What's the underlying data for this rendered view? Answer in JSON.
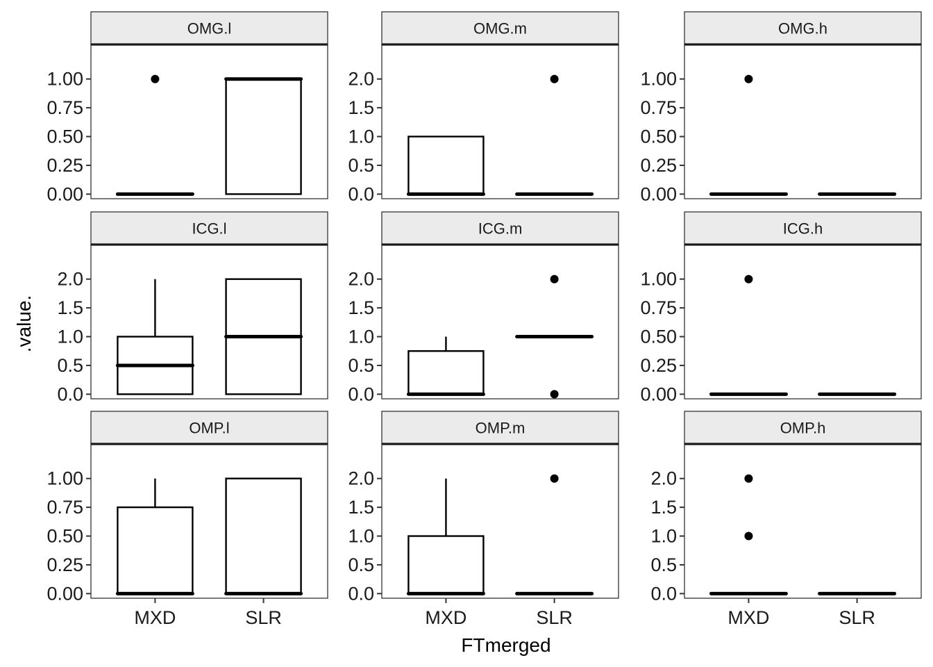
{
  "chart_data": {
    "type": "boxplot",
    "layout": "facet-grid 3x3",
    "xlabel": "FTmerged",
    "ylabel": ".value.",
    "categories": [
      "MXD",
      "SLR"
    ],
    "x_tick_labels": [
      "MXD",
      "SLR"
    ],
    "colors": {
      "box": "#000000",
      "strip_fill": "#ebebeb",
      "background": "#ffffff"
    },
    "panels": [
      {
        "label": "OMG.l",
        "ylim": [
          -0.04,
          1.3
        ],
        "y_tick_labels": [
          "0.00",
          "0.25",
          "0.50",
          "0.75",
          "1.00"
        ],
        "y_tick_values": [
          0,
          0.25,
          0.5,
          0.75,
          1.0
        ],
        "boxes": [
          {
            "category": "MXD",
            "lower_whisker": 0,
            "q1": 0,
            "median": 0,
            "q3": 0,
            "upper_whisker": 0,
            "outliers": [
              1
            ]
          },
          {
            "category": "SLR",
            "lower_whisker": 0,
            "q1": 0,
            "median": 1,
            "q3": 1,
            "upper_whisker": 1,
            "outliers": []
          }
        ]
      },
      {
        "label": "OMG.m",
        "ylim": [
          -0.08,
          2.6
        ],
        "y_tick_labels": [
          "0.0",
          "0.5",
          "1.0",
          "1.5",
          "2.0"
        ],
        "y_tick_values": [
          0,
          0.5,
          1.0,
          1.5,
          2.0
        ],
        "boxes": [
          {
            "category": "MXD",
            "lower_whisker": 0,
            "q1": 0,
            "median": 0,
            "q3": 1,
            "upper_whisker": 1,
            "outliers": []
          },
          {
            "category": "SLR",
            "lower_whisker": 0,
            "q1": 0,
            "median": 0,
            "q3": 0,
            "upper_whisker": 0,
            "outliers": [
              2
            ]
          }
        ]
      },
      {
        "label": "OMG.h",
        "ylim": [
          -0.04,
          1.3
        ],
        "y_tick_labels": [
          "0.00",
          "0.25",
          "0.50",
          "0.75",
          "1.00"
        ],
        "y_tick_values": [
          0,
          0.25,
          0.5,
          0.75,
          1.0
        ],
        "boxes": [
          {
            "category": "MXD",
            "lower_whisker": 0,
            "q1": 0,
            "median": 0,
            "q3": 0,
            "upper_whisker": 0,
            "outliers": [
              1
            ]
          },
          {
            "category": "SLR",
            "lower_whisker": 0,
            "q1": 0,
            "median": 0,
            "q3": 0,
            "upper_whisker": 0,
            "outliers": []
          }
        ]
      },
      {
        "label": "ICG.l",
        "ylim": [
          -0.08,
          2.6
        ],
        "y_tick_labels": [
          "0.0",
          "0.5",
          "1.0",
          "1.5",
          "2.0"
        ],
        "y_tick_values": [
          0,
          0.5,
          1.0,
          1.5,
          2.0
        ],
        "boxes": [
          {
            "category": "MXD",
            "lower_whisker": 0,
            "q1": 0,
            "median": 0.5,
            "q3": 1,
            "upper_whisker": 2,
            "outliers": []
          },
          {
            "category": "SLR",
            "lower_whisker": 0,
            "q1": 0,
            "median": 1,
            "q3": 2,
            "upper_whisker": 2,
            "outliers": []
          }
        ]
      },
      {
        "label": "ICG.m",
        "ylim": [
          -0.08,
          2.6
        ],
        "y_tick_labels": [
          "0.0",
          "0.5",
          "1.0",
          "1.5",
          "2.0"
        ],
        "y_tick_values": [
          0,
          0.5,
          1.0,
          1.5,
          2.0
        ],
        "boxes": [
          {
            "category": "MXD",
            "lower_whisker": 0,
            "q1": 0,
            "median": 0,
            "q3": 0.75,
            "upper_whisker": 1,
            "outliers": []
          },
          {
            "category": "SLR",
            "lower_whisker": 1,
            "q1": 1,
            "median": 1,
            "q3": 1,
            "upper_whisker": 1,
            "outliers": [
              0,
              2
            ]
          }
        ]
      },
      {
        "label": "ICG.h",
        "ylim": [
          -0.04,
          1.3
        ],
        "y_tick_labels": [
          "0.00",
          "0.25",
          "0.50",
          "0.75",
          "1.00"
        ],
        "y_tick_values": [
          0,
          0.25,
          0.5,
          0.75,
          1.0
        ],
        "boxes": [
          {
            "category": "MXD",
            "lower_whisker": 0,
            "q1": 0,
            "median": 0,
            "q3": 0,
            "upper_whisker": 0,
            "outliers": [
              1
            ]
          },
          {
            "category": "SLR",
            "lower_whisker": 0,
            "q1": 0,
            "median": 0,
            "q3": 0,
            "upper_whisker": 0,
            "outliers": []
          }
        ]
      },
      {
        "label": "OMP.l",
        "ylim": [
          -0.04,
          1.3
        ],
        "y_tick_labels": [
          "0.00",
          "0.25",
          "0.50",
          "0.75",
          "1.00"
        ],
        "y_tick_values": [
          0,
          0.25,
          0.5,
          0.75,
          1.0
        ],
        "boxes": [
          {
            "category": "MXD",
            "lower_whisker": 0,
            "q1": 0,
            "median": 0,
            "q3": 0.75,
            "upper_whisker": 1,
            "outliers": []
          },
          {
            "category": "SLR",
            "lower_whisker": 0,
            "q1": 0,
            "median": 0,
            "q3": 1,
            "upper_whisker": 1,
            "outliers": []
          }
        ]
      },
      {
        "label": "OMP.m",
        "ylim": [
          -0.08,
          2.6
        ],
        "y_tick_labels": [
          "0.0",
          "0.5",
          "1.0",
          "1.5",
          "2.0"
        ],
        "y_tick_values": [
          0,
          0.5,
          1.0,
          1.5,
          2.0
        ],
        "boxes": [
          {
            "category": "MXD",
            "lower_whisker": 0,
            "q1": 0,
            "median": 0,
            "q3": 1,
            "upper_whisker": 2,
            "outliers": []
          },
          {
            "category": "SLR",
            "lower_whisker": 0,
            "q1": 0,
            "median": 0,
            "q3": 0,
            "upper_whisker": 0,
            "outliers": [
              2
            ]
          }
        ]
      },
      {
        "label": "OMP.h",
        "ylim": [
          -0.08,
          2.6
        ],
        "y_tick_labels": [
          "0.0",
          "0.5",
          "1.0",
          "1.5",
          "2.0"
        ],
        "y_tick_values": [
          0,
          0.5,
          1.0,
          1.5,
          2.0
        ],
        "boxes": [
          {
            "category": "MXD",
            "lower_whisker": 0,
            "q1": 0,
            "median": 0,
            "q3": 0,
            "upper_whisker": 0,
            "outliers": [
              1,
              2
            ]
          },
          {
            "category": "SLR",
            "lower_whisker": 0,
            "q1": 0,
            "median": 0,
            "q3": 0,
            "upper_whisker": 0,
            "outliers": []
          }
        ]
      }
    ]
  }
}
